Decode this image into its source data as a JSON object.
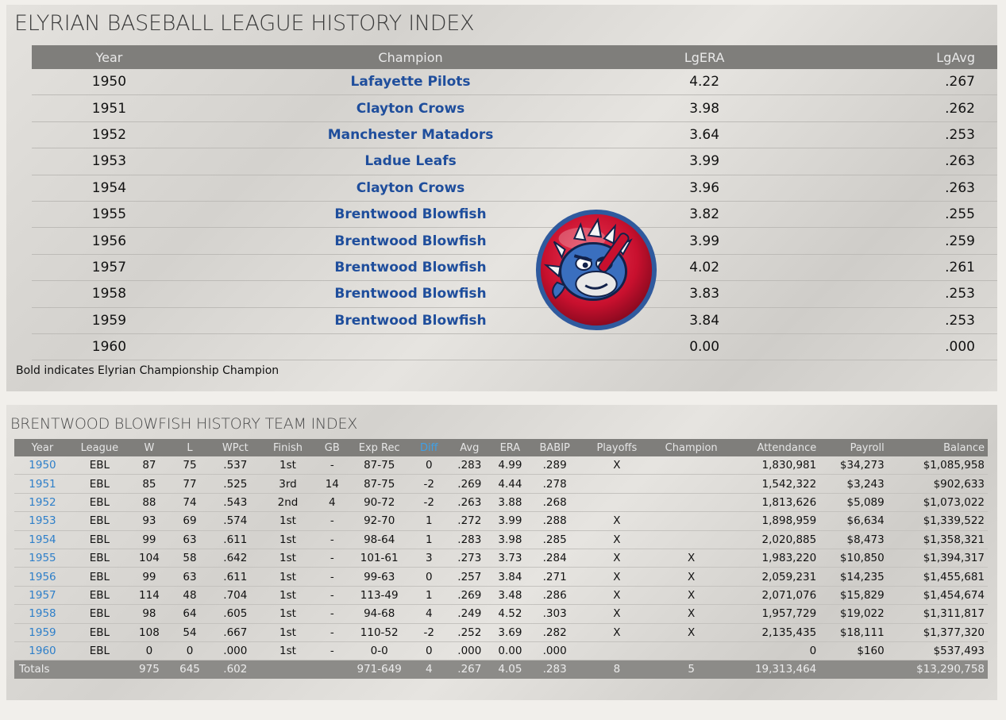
{
  "league_panel": {
    "title": "ELYRIAN BASEBALL LEAGUE HISTORY INDEX",
    "columns": [
      "Year",
      "Champion",
      "LgERA",
      "LgAvg"
    ],
    "rows": [
      {
        "year": "1950",
        "champion": "Lafayette Pilots",
        "lgera": "4.22",
        "lgavg": ".267"
      },
      {
        "year": "1951",
        "champion": "Clayton Crows",
        "lgera": "3.98",
        "lgavg": ".262"
      },
      {
        "year": "1952",
        "champion": "Manchester Matadors",
        "lgera": "3.64",
        "lgavg": ".253"
      },
      {
        "year": "1953",
        "champion": "Ladue Leafs",
        "lgera": "3.99",
        "lgavg": ".263"
      },
      {
        "year": "1954",
        "champion": "Clayton Crows",
        "lgera": "3.96",
        "lgavg": ".263"
      },
      {
        "year": "1955",
        "champion": "Brentwood Blowfish",
        "lgera": "3.82",
        "lgavg": ".255"
      },
      {
        "year": "1956",
        "champion": "Brentwood Blowfish",
        "lgera": "3.99",
        "lgavg": ".259"
      },
      {
        "year": "1957",
        "champion": "Brentwood Blowfish",
        "lgera": "4.02",
        "lgavg": ".261"
      },
      {
        "year": "1958",
        "champion": "Brentwood Blowfish",
        "lgera": "3.83",
        "lgavg": ".253"
      },
      {
        "year": "1959",
        "champion": "Brentwood Blowfish",
        "lgera": "3.84",
        "lgavg": ".253"
      },
      {
        "year": "1960",
        "champion": "",
        "lgera": "0.00",
        "lgavg": ".000"
      }
    ],
    "footnote": "Bold indicates Elyrian Championship Champion",
    "logo_icon": "blowfish-team-logo-icon",
    "colors": {
      "header_bg": "#7f7e7b",
      "link": "#1f4e9c",
      "logo_red": "#c8102e",
      "logo_blue": "#2f5a9e"
    }
  },
  "team_panel": {
    "title": "BRENTWOOD BLOWFISH HISTORY TEAM INDEX",
    "columns": [
      "Year",
      "League",
      "W",
      "L",
      "WPct",
      "Finish",
      "GB",
      "Exp Rec",
      "Diff",
      "Avg",
      "ERA",
      "BABIP",
      "Playoffs",
      "Champion",
      "Attendance",
      "Payroll",
      "Balance"
    ],
    "rows": [
      [
        "1950",
        "EBL",
        "87",
        "75",
        ".537",
        "1st",
        "-",
        "87-75",
        "0",
        ".283",
        "4.99",
        ".289",
        "X",
        "",
        "1,830,981",
        "$34,273",
        "$1,085,958"
      ],
      [
        "1951",
        "EBL",
        "85",
        "77",
        ".525",
        "3rd",
        "14",
        "87-75",
        "-2",
        ".269",
        "4.44",
        ".278",
        "",
        "",
        "1,542,322",
        "$3,243",
        "$902,633"
      ],
      [
        "1952",
        "EBL",
        "88",
        "74",
        ".543",
        "2nd",
        "4",
        "90-72",
        "-2",
        ".263",
        "3.88",
        ".268",
        "",
        "",
        "1,813,626",
        "$5,089",
        "$1,073,022"
      ],
      [
        "1953",
        "EBL",
        "93",
        "69",
        ".574",
        "1st",
        "-",
        "92-70",
        "1",
        ".272",
        "3.99",
        ".288",
        "X",
        "",
        "1,898,959",
        "$6,634",
        "$1,339,522"
      ],
      [
        "1954",
        "EBL",
        "99",
        "63",
        ".611",
        "1st",
        "-",
        "98-64",
        "1",
        ".283",
        "3.98",
        ".285",
        "X",
        "",
        "2,020,885",
        "$8,473",
        "$1,358,321"
      ],
      [
        "1955",
        "EBL",
        "104",
        "58",
        ".642",
        "1st",
        "-",
        "101-61",
        "3",
        ".273",
        "3.73",
        ".284",
        "X",
        "X",
        "1,983,220",
        "$10,850",
        "$1,394,317"
      ],
      [
        "1956",
        "EBL",
        "99",
        "63",
        ".611",
        "1st",
        "-",
        "99-63",
        "0",
        ".257",
        "3.84",
        ".271",
        "X",
        "X",
        "2,059,231",
        "$14,235",
        "$1,455,681"
      ],
      [
        "1957",
        "EBL",
        "114",
        "48",
        ".704",
        "1st",
        "-",
        "113-49",
        "1",
        ".269",
        "3.48",
        ".286",
        "X",
        "X",
        "2,071,076",
        "$15,829",
        "$1,454,674"
      ],
      [
        "1958",
        "EBL",
        "98",
        "64",
        ".605",
        "1st",
        "-",
        "94-68",
        "4",
        ".249",
        "4.52",
        ".303",
        "X",
        "X",
        "1,957,729",
        "$19,022",
        "$1,311,817"
      ],
      [
        "1959",
        "EBL",
        "108",
        "54",
        ".667",
        "1st",
        "-",
        "110-52",
        "-2",
        ".252",
        "3.69",
        ".282",
        "X",
        "X",
        "2,135,435",
        "$18,111",
        "$1,377,320"
      ],
      [
        "1960",
        "EBL",
        "0",
        "0",
        ".000",
        "1st",
        "-",
        "0-0",
        "0",
        ".000",
        "0.00",
        ".000",
        "",
        "",
        "0",
        "$160",
        "$537,493"
      ]
    ],
    "totals": [
      "Totals",
      "",
      "975",
      "645",
      ".602",
      "",
      "",
      "971-649",
      "4",
      ".267",
      "4.05",
      ".283",
      "8",
      "5",
      "19,313,464",
      "",
      "$13,290,758"
    ],
    "colors": {
      "year_link": "#2e7fc9",
      "diff_header": "#3fa0e6",
      "totals_bg": "#8c8b88"
    }
  }
}
